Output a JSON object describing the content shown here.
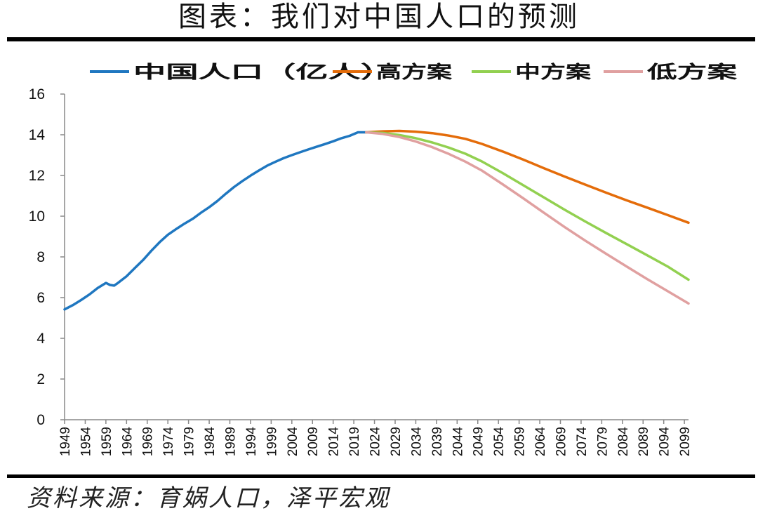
{
  "title": "图表：我们对中国人口的预测",
  "source": "资料来源：育娲人口，泽平宏观",
  "chart_data": {
    "type": "line",
    "title": "",
    "xlabel": "",
    "ylabel": "",
    "ylim": [
      0,
      16
    ],
    "yticks": [
      0,
      2,
      4,
      6,
      8,
      10,
      12,
      14,
      16
    ],
    "xlim": [
      1949,
      2100
    ],
    "xticks": [
      1949,
      1954,
      1959,
      1964,
      1969,
      1974,
      1979,
      1984,
      1989,
      1994,
      1999,
      2004,
      2009,
      2014,
      2019,
      2024,
      2029,
      2034,
      2039,
      2044,
      2049,
      2054,
      2059,
      2064,
      2069,
      2074,
      2079,
      2084,
      2089,
      2094,
      2099
    ],
    "grid": false,
    "legend_position": "top",
    "series": [
      {
        "name": "中国人口（亿人）",
        "color": "#1f77c0",
        "points": [
          [
            1949,
            5.42
          ],
          [
            1951,
            5.63
          ],
          [
            1953,
            5.88
          ],
          [
            1955,
            6.15
          ],
          [
            1957,
            6.47
          ],
          [
            1959,
            6.72
          ],
          [
            1960,
            6.62
          ],
          [
            1961,
            6.59
          ],
          [
            1962,
            6.73
          ],
          [
            1964,
            7.05
          ],
          [
            1966,
            7.45
          ],
          [
            1968,
            7.85
          ],
          [
            1970,
            8.3
          ],
          [
            1972,
            8.72
          ],
          [
            1974,
            9.09
          ],
          [
            1976,
            9.37
          ],
          [
            1978,
            9.63
          ],
          [
            1980,
            9.87
          ],
          [
            1982,
            10.17
          ],
          [
            1984,
            10.44
          ],
          [
            1986,
            10.75
          ],
          [
            1988,
            11.1
          ],
          [
            1990,
            11.43
          ],
          [
            1992,
            11.72
          ],
          [
            1994,
            11.99
          ],
          [
            1996,
            12.24
          ],
          [
            1998,
            12.48
          ],
          [
            2000,
            12.67
          ],
          [
            2002,
            12.85
          ],
          [
            2004,
            13.0
          ],
          [
            2006,
            13.14
          ],
          [
            2008,
            13.28
          ],
          [
            2010,
            13.41
          ],
          [
            2012,
            13.54
          ],
          [
            2014,
            13.68
          ],
          [
            2016,
            13.83
          ],
          [
            2018,
            13.95
          ],
          [
            2020,
            14.12
          ],
          [
            2022,
            14.12
          ]
        ]
      },
      {
        "name": "高方案",
        "color": "#e46c0a",
        "points": [
          [
            2022,
            14.12
          ],
          [
            2026,
            14.17
          ],
          [
            2030,
            14.19
          ],
          [
            2034,
            14.15
          ],
          [
            2038,
            14.08
          ],
          [
            2042,
            13.96
          ],
          [
            2046,
            13.8
          ],
          [
            2050,
            13.55
          ],
          [
            2055,
            13.18
          ],
          [
            2060,
            12.78
          ],
          [
            2065,
            12.36
          ],
          [
            2070,
            11.95
          ],
          [
            2075,
            11.55
          ],
          [
            2080,
            11.16
          ],
          [
            2085,
            10.78
          ],
          [
            2090,
            10.42
          ],
          [
            2095,
            10.05
          ],
          [
            2100,
            9.68
          ]
        ]
      },
      {
        "name": "中方案",
        "color": "#92d050",
        "points": [
          [
            2022,
            14.12
          ],
          [
            2026,
            14.09
          ],
          [
            2030,
            13.99
          ],
          [
            2034,
            13.83
          ],
          [
            2038,
            13.62
          ],
          [
            2042,
            13.37
          ],
          [
            2046,
            13.07
          ],
          [
            2050,
            12.69
          ],
          [
            2055,
            12.12
          ],
          [
            2060,
            11.52
          ],
          [
            2065,
            10.92
          ],
          [
            2070,
            10.32
          ],
          [
            2075,
            9.74
          ],
          [
            2080,
            9.18
          ],
          [
            2085,
            8.63
          ],
          [
            2090,
            8.08
          ],
          [
            2095,
            7.52
          ],
          [
            2100,
            6.88
          ]
        ]
      },
      {
        "name": "低方案",
        "color": "#e0a0a0",
        "points": [
          [
            2022,
            14.12
          ],
          [
            2026,
            14.04
          ],
          [
            2030,
            13.89
          ],
          [
            2034,
            13.67
          ],
          [
            2038,
            13.39
          ],
          [
            2042,
            13.06
          ],
          [
            2046,
            12.68
          ],
          [
            2050,
            12.24
          ],
          [
            2055,
            11.57
          ],
          [
            2060,
            10.88
          ],
          [
            2065,
            10.17
          ],
          [
            2070,
            9.47
          ],
          [
            2075,
            8.8
          ],
          [
            2080,
            8.16
          ],
          [
            2085,
            7.53
          ],
          [
            2090,
            6.91
          ],
          [
            2095,
            6.31
          ],
          [
            2100,
            5.71
          ]
        ]
      }
    ]
  }
}
